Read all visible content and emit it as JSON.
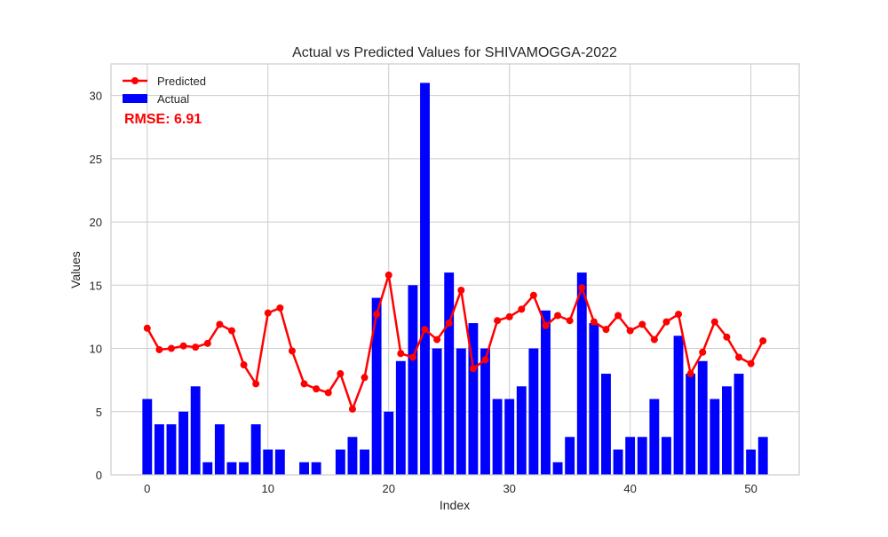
{
  "chart_data": {
    "type": "bar",
    "title": "Actual vs Predicted Values for SHIVAMOGGA-2022",
    "xlabel": "Index",
    "ylabel": "Values",
    "xlim": [
      -3,
      54
    ],
    "ylim": [
      0,
      32.5
    ],
    "x_ticks": [
      0,
      10,
      20,
      30,
      40,
      50
    ],
    "y_ticks": [
      0,
      5,
      10,
      15,
      20,
      25,
      30
    ],
    "grid": true,
    "legend_position": "top-left",
    "annotation": "RMSE: 6.91",
    "x": [
      0,
      1,
      2,
      3,
      4,
      5,
      6,
      7,
      8,
      9,
      10,
      11,
      12,
      13,
      14,
      15,
      16,
      17,
      18,
      19,
      20,
      21,
      22,
      23,
      24,
      25,
      26,
      27,
      28,
      29,
      30,
      31,
      32,
      33,
      34,
      35,
      36,
      37,
      38,
      39,
      40,
      41,
      42,
      43,
      44,
      45,
      46,
      47,
      48,
      49,
      50,
      51
    ],
    "series": [
      {
        "name": "Actual",
        "type": "bar",
        "color": "#0000ff",
        "values": [
          6,
          4,
          4,
          5,
          7,
          1,
          4,
          1,
          1,
          4,
          2,
          2,
          0,
          1,
          1,
          0,
          2,
          3,
          2,
          14,
          5,
          9,
          15,
          31,
          10,
          16,
          10,
          12,
          10,
          6,
          6,
          7,
          10,
          13,
          1,
          3,
          16,
          12,
          8,
          2,
          3,
          3,
          6,
          3,
          11,
          8,
          9,
          6,
          7,
          8,
          2,
          3
        ]
      },
      {
        "name": "Predicted",
        "type": "line",
        "color": "#ff0000",
        "values": [
          11.6,
          9.9,
          10.0,
          10.2,
          10.1,
          10.4,
          11.9,
          11.4,
          8.7,
          7.2,
          12.8,
          13.2,
          9.8,
          7.2,
          6.8,
          6.5,
          8.0,
          5.2,
          7.7,
          12.7,
          15.8,
          9.6,
          9.3,
          11.5,
          10.7,
          12.0,
          14.6,
          8.4,
          9.1,
          12.2,
          12.5,
          13.1,
          14.2,
          11.8,
          12.6,
          12.2,
          14.8,
          12.1,
          11.5,
          12.6,
          11.4,
          11.9,
          10.7,
          12.1,
          12.7,
          8.0,
          9.7,
          12.1,
          10.9,
          9.3,
          8.8,
          10.6
        ]
      }
    ]
  }
}
